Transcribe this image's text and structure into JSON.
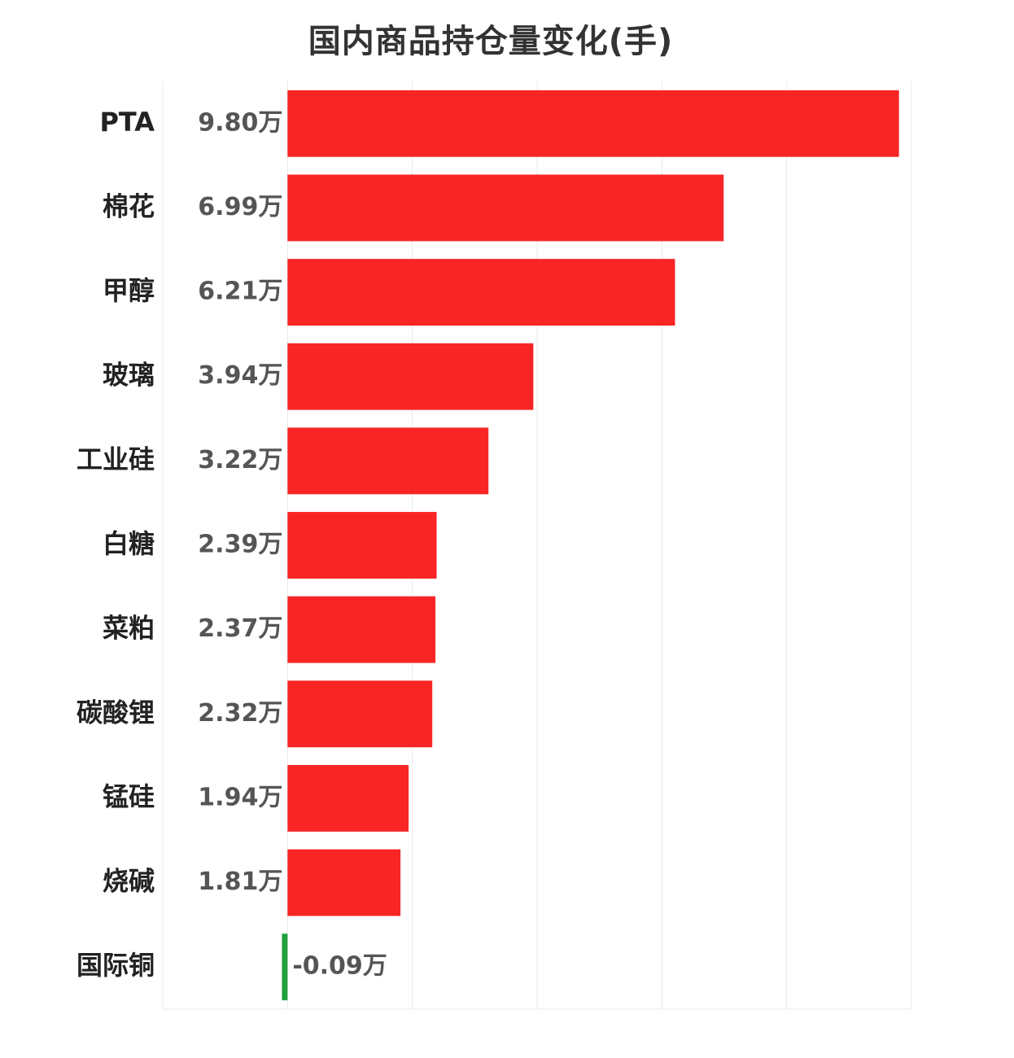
{
  "chart_data": {
    "type": "bar",
    "orientation": "horizontal",
    "title": "国内商品持仓量变化(手)",
    "categories": [
      "PTA",
      "棉花",
      "甲醇",
      "玻璃",
      "工业硅",
      "白糖",
      "菜粕",
      "碳酸锂",
      "锰硅",
      "烧碱",
      "国际铜"
    ],
    "values": [
      9.8,
      6.99,
      6.21,
      3.94,
      3.22,
      2.39,
      2.37,
      2.32,
      1.94,
      1.81,
      -0.09
    ],
    "value_labels": [
      "9.80万",
      "6.99万",
      "6.21万",
      "3.94万",
      "3.22万",
      "2.39万",
      "2.37万",
      "2.32万",
      "1.94万",
      "1.81万",
      "-0.09万"
    ],
    "unit": "万",
    "xlim": [
      -2,
      10
    ],
    "grid": true,
    "legend": "none",
    "colors": {
      "positive": "#f92525",
      "negative": "#22a040",
      "grid": "#e8e8e8"
    }
  }
}
